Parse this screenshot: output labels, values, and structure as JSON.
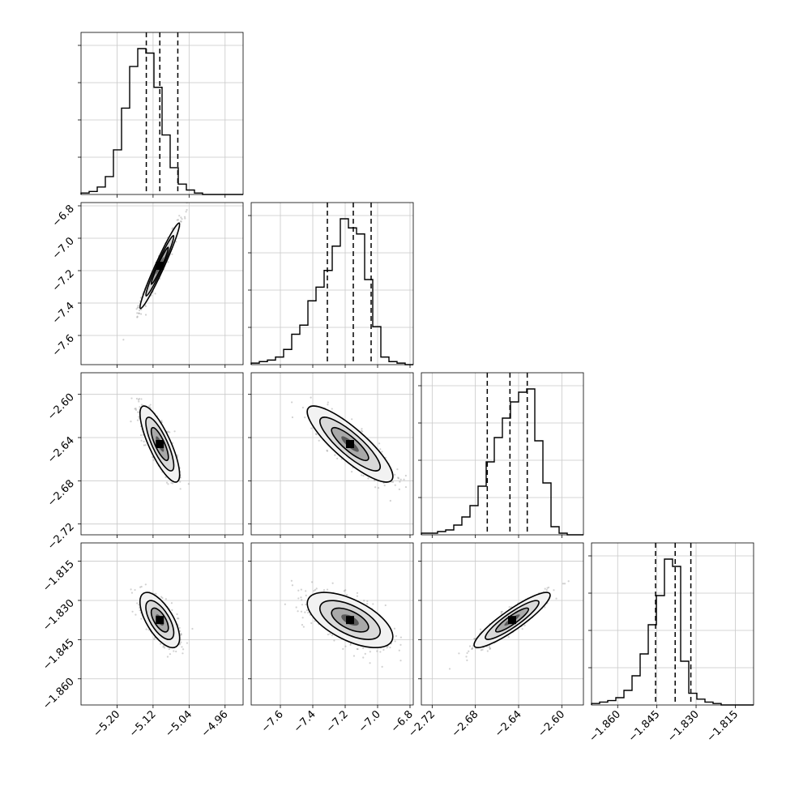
{
  "chart_data": {
    "type": "scatter",
    "subtype": "corner-plot",
    "title": "",
    "n_params": 4,
    "axis_labels": [
      "",
      "",
      "",
      ""
    ],
    "grid": true,
    "params": [
      {
        "range": [
          -5.28,
          -4.92
        ],
        "ticks": [
          -5.2,
          -5.12,
          -5.04,
          -4.96
        ],
        "tick_labels": [
          "−5.20",
          "−5.12",
          "−5.04",
          "−4.96"
        ],
        "quantiles": [
          -5.135,
          -5.105,
          -5.065
        ],
        "hist_counts": [
          1,
          2,
          5,
          12,
          30,
          58,
          86,
          98,
          95,
          72,
          40,
          18,
          7,
          3,
          1,
          0,
          0,
          0,
          0,
          0
        ]
      },
      {
        "range": [
          -7.78,
          -6.78
        ],
        "ticks": [
          -7.6,
          -7.4,
          -7.2,
          -7.0,
          -6.8
        ],
        "tick_labels": [
          "−7.6",
          "−7.4",
          "−7.2",
          "−7.0",
          "−6.8"
        ],
        "quantiles": [
          -7.31,
          -7.15,
          -7.04
        ],
        "hist_counts": [
          1,
          2,
          3,
          5,
          10,
          20,
          26,
          42,
          51,
          62,
          78,
          96,
          90,
          86,
          56,
          25,
          5,
          2,
          1,
          0
        ]
      },
      {
        "range": [
          -2.73,
          -2.58
        ],
        "ticks": [
          -2.72,
          -2.68,
          -2.64,
          -2.6
        ],
        "tick_labels": [
          "−2.72",
          "−2.68",
          "−2.64",
          "−2.60"
        ],
        "quantiles": [
          -2.669,
          -2.648,
          -2.632
        ],
        "hist_counts": [
          1,
          1,
          2,
          3,
          6,
          11,
          18,
          30,
          45,
          60,
          72,
          82,
          88,
          90,
          58,
          32,
          5,
          1,
          0,
          0
        ]
      },
      {
        "range": [
          -1.87,
          -1.808
        ],
        "ticks": [
          -1.86,
          -1.845,
          -1.83,
          -1.815
        ],
        "tick_labels": [
          "−1.860",
          "−1.845",
          "−1.830",
          "−1.815"
        ],
        "quantiles": [
          -1.8455,
          -1.838,
          -1.832
        ],
        "hist_counts": [
          1,
          2,
          3,
          5,
          10,
          20,
          35,
          55,
          75,
          100,
          95,
          30,
          8,
          4,
          2,
          1,
          0,
          0,
          0,
          0
        ]
      }
    ],
    "row_tick_labels": [
      [],
      [
        "−6.8",
        "−7.0",
        "−7.2",
        "−7.4",
        "−7.6"
      ],
      [
        "−2.60",
        "−2.64",
        "−2.68",
        "−2.72"
      ],
      [
        "−1.815",
        "−1.830",
        "−1.845",
        "−1.860"
      ]
    ],
    "pairs": [
      {
        "row": 1,
        "col": 0,
        "corr": 0.97,
        "mean": [
          -5.105,
          -7.17
        ],
        "sd": [
          0.02,
          0.12
        ]
      },
      {
        "row": 2,
        "col": 0,
        "corr": -0.8,
        "mean": [
          -5.105,
          -2.646
        ],
        "sd": [
          0.02,
          0.016
        ]
      },
      {
        "row": 2,
        "col": 1,
        "corr": -0.85,
        "mean": [
          -7.17,
          -2.646
        ],
        "sd": [
          0.12,
          0.016
        ]
      },
      {
        "row": 3,
        "col": 0,
        "corr": -0.65,
        "mean": [
          -5.105,
          -1.8375
        ],
        "sd": [
          0.02,
          0.0048
        ]
      },
      {
        "row": 3,
        "col": 1,
        "corr": -0.6,
        "mean": [
          -7.17,
          -1.8375
        ],
        "sd": [
          0.12,
          0.0048
        ]
      },
      {
        "row": 3,
        "col": 2,
        "corr": 0.9,
        "mean": [
          -2.646,
          -1.8375
        ],
        "sd": [
          0.016,
          0.0048
        ]
      }
    ]
  }
}
